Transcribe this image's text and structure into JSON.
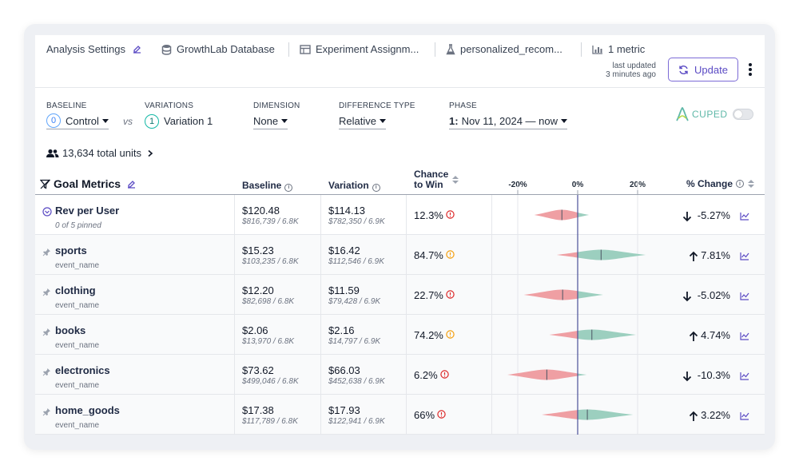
{
  "topbar": {
    "analysis_settings": "Analysis Settings",
    "datasource": "GrowthLab Database",
    "assignment": "Experiment Assignm...",
    "experiment": "personalized_recom...",
    "metrics": "1 metric",
    "last_updated_label": "last updated",
    "last_updated_value": "3 minutes ago",
    "update_label": "Update"
  },
  "controls": {
    "baseline_label": "BASELINE",
    "baseline_badge": "0",
    "baseline_value": "Control",
    "vs": "vs",
    "variations_label": "VARIATIONS",
    "variation_badge": "1",
    "variation_value": "Variation 1",
    "dimension_label": "DIMENSION",
    "dimension_value": "None",
    "difference_label": "DIFFERENCE TYPE",
    "difference_value": "Relative",
    "phase_label": "PHASE",
    "phase_num": "1:",
    "phase_value": "Nov 11, 2024 — now",
    "cuped_label": "CUPED",
    "cuped_enabled": false
  },
  "summary": {
    "units": "13,634 total units"
  },
  "table": {
    "title": "Goal Metrics",
    "col_baseline": "Baseline",
    "col_variation": "Variation",
    "col_ctw_1": "Chance",
    "col_ctw_2": "to Win",
    "col_change": "% Change",
    "axis": [
      "-20%",
      "0%",
      "20%"
    ],
    "rows": [
      {
        "name": "Rev per User",
        "sub": "0 of 5 pinned",
        "baseline": "$120.48",
        "baseline_sub": "$816,739 / 6.8K",
        "variation": "$114.13",
        "variation_sub": "$782,350 / 6.9K",
        "ctw": "12.3%",
        "ctw_status": "bad",
        "change": "-5.27%",
        "direction": "down"
      },
      {
        "name": "sports",
        "sub": "event_name",
        "baseline": "$15.23",
        "baseline_sub": "$103,235 / 6.8K",
        "variation": "$16.42",
        "variation_sub": "$112,546 / 6.9K",
        "ctw": "84.7%",
        "ctw_status": "warn",
        "change": "7.81%",
        "direction": "up"
      },
      {
        "name": "clothing",
        "sub": "event_name",
        "baseline": "$12.20",
        "baseline_sub": "$82,698 / 6.8K",
        "variation": "$11.59",
        "variation_sub": "$79,428 / 6.9K",
        "ctw": "22.7%",
        "ctw_status": "bad",
        "change": "-5.02%",
        "direction": "down"
      },
      {
        "name": "books",
        "sub": "event_name",
        "baseline": "$2.06",
        "baseline_sub": "$13,970 / 6.8K",
        "variation": "$2.16",
        "variation_sub": "$14,797 / 6.9K",
        "ctw": "74.2%",
        "ctw_status": "warn",
        "change": "4.74%",
        "direction": "up"
      },
      {
        "name": "electronics",
        "sub": "event_name",
        "baseline": "$73.62",
        "baseline_sub": "$499,046 / 6.8K",
        "variation": "$66.03",
        "variation_sub": "$452,638 / 6.9K",
        "ctw": "6.2%",
        "ctw_status": "bad",
        "change": "-10.3%",
        "direction": "down"
      },
      {
        "name": "home_goods",
        "sub": "event_name",
        "baseline": "$17.38",
        "baseline_sub": "$117,789 / 6.8K",
        "variation": "$17.93",
        "variation_sub": "$122,941 / 6.9K",
        "ctw": "66%",
        "ctw_status": "bad",
        "change": "3.22%",
        "direction": "up"
      }
    ]
  },
  "chart_data": {
    "type": "violin",
    "xlabel": "% Change",
    "xticks": [
      "-20%",
      "0%",
      "20%"
    ],
    "xlim": [
      -24,
      31
    ],
    "series": [
      {
        "name": "Rev per User",
        "ci": [
          -14.5,
          3.8
        ],
        "point": -5.27
      },
      {
        "name": "sports",
        "ci": [
          -7,
          22.7
        ],
        "point": 7.81
      },
      {
        "name": "clothing",
        "ci": [
          -18,
          8.5
        ],
        "point": -5.02
      },
      {
        "name": "books",
        "ci": [
          -9.5,
          19.5
        ],
        "point": 4.74
      },
      {
        "name": "electronics",
        "ci": [
          -23.5,
          3
        ],
        "point": -10.3
      },
      {
        "name": "home_goods",
        "ci": [
          -12,
          18.5
        ],
        "point": 3.22
      }
    ]
  },
  "colors": {
    "positive": "#9ccfbf",
    "negative": "#ef9fa3",
    "accent": "#5b4bc4",
    "zero_line": "#4b5099"
  }
}
